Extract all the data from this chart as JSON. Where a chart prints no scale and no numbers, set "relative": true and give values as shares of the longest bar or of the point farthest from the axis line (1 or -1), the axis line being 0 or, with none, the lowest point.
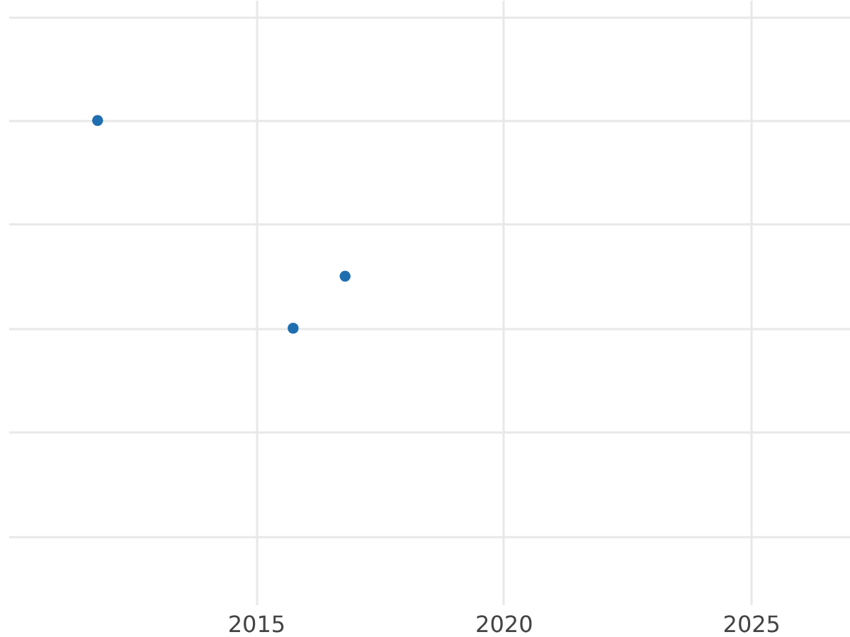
{
  "chart_data": {
    "type": "scatter",
    "relative": true,
    "x": [
      2011.8,
      2015.75,
      2016.8
    ],
    "series": [
      {
        "color": "#1f6eb0",
        "values": [
          1,
          0,
          0.25
        ]
      }
    ],
    "xlim": [
      2010,
      2027
    ],
    "xticks": [
      2015,
      2020,
      2025
    ],
    "grid": true,
    "marker": "circle"
  }
}
